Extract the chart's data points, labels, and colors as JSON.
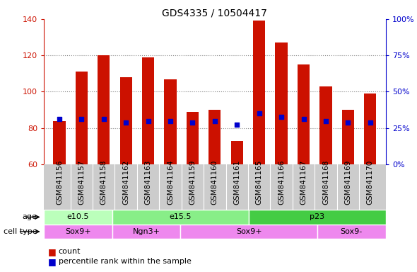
{
  "title": "GDS4335 / 10504417",
  "samples": [
    "GSM841156",
    "GSM841157",
    "GSM841158",
    "GSM841162",
    "GSM841163",
    "GSM841164",
    "GSM841159",
    "GSM841160",
    "GSM841161",
    "GSM841165",
    "GSM841166",
    "GSM841167",
    "GSM841168",
    "GSM841169",
    "GSM841170"
  ],
  "count_values": [
    84,
    111,
    120,
    108,
    119,
    107,
    89,
    90,
    73,
    139,
    127,
    115,
    103,
    90,
    99
  ],
  "percentile_left_values": [
    85,
    85,
    85,
    83,
    84,
    84,
    83,
    84,
    82,
    88,
    86,
    85,
    84,
    83,
    83
  ],
  "ylim_left": [
    60,
    140
  ],
  "ylim_right": [
    0,
    100
  ],
  "yticks_left": [
    60,
    80,
    100,
    120,
    140
  ],
  "yticks_right": [
    0,
    25,
    50,
    75,
    100
  ],
  "yticklabels_right": [
    "0%",
    "25%",
    "50%",
    "75%",
    "100%"
  ],
  "bar_color": "#CC1100",
  "percentile_color": "#0000CC",
  "grid_color": "#888888",
  "axis_color_left": "#CC1100",
  "axis_color_right": "#0000CC",
  "age_groups": [
    {
      "label": "e10.5",
      "start": 0,
      "end": 3,
      "color": "#bbffbb"
    },
    {
      "label": "e15.5",
      "start": 3,
      "end": 9,
      "color": "#88ee88"
    },
    {
      "label": "p23",
      "start": 9,
      "end": 15,
      "color": "#44cc44"
    }
  ],
  "cell_groups": [
    {
      "label": "Sox9+",
      "start": 0,
      "end": 3,
      "color": "#ee88ee"
    },
    {
      "label": "Ngn3+",
      "start": 3,
      "end": 6,
      "color": "#ee88ee"
    },
    {
      "label": "Sox9+",
      "start": 6,
      "end": 12,
      "color": "#ee88ee"
    },
    {
      "label": "Sox9-",
      "start": 12,
      "end": 15,
      "color": "#ee88ee"
    }
  ],
  "xtick_bg_color": "#cccccc",
  "bar_width": 0.55,
  "title_fontsize": 10,
  "tick_fontsize": 7.5,
  "annot_fontsize": 8,
  "legend_fontsize": 8
}
